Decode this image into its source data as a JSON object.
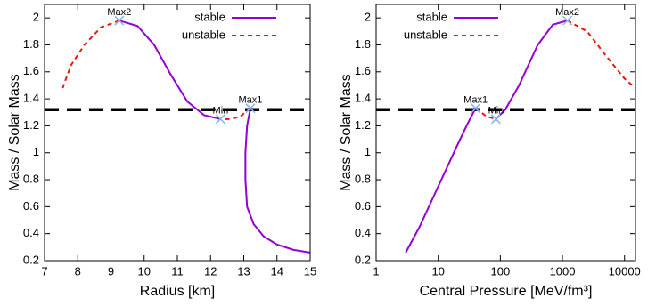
{
  "chart_data": [
    {
      "type": "line",
      "xlabel": "Radius [km]",
      "ylabel": "Mass / Solar Mass",
      "xlim": [
        7,
        15
      ],
      "xticks": [
        7,
        8,
        9,
        10,
        11,
        12,
        13,
        14,
        15
      ],
      "ylim": [
        0.2,
        2.1
      ],
      "yticks": [
        0.2,
        0.4,
        0.6,
        0.8,
        1,
        1.2,
        1.4,
        1.6,
        1.8,
        2
      ],
      "legend": "top-right",
      "hline": {
        "value": 1.32,
        "color": "#000000"
      },
      "series": [
        {
          "name": "stable",
          "color": "#9400d3",
          "dashed": false,
          "x": [
            15,
            14.5,
            14,
            13.6,
            13.3,
            13.1,
            13.05,
            13.05,
            13.1,
            13.2,
            null,
            12.3,
            11.8,
            11.3,
            10.8,
            10.3,
            9.8,
            9.25
          ],
          "values": [
            0.26,
            0.28,
            0.32,
            0.38,
            0.47,
            0.6,
            0.8,
            1.0,
            1.2,
            1.33,
            null,
            1.25,
            1.28,
            1.38,
            1.58,
            1.8,
            1.94,
            1.98
          ]
        },
        {
          "name": "unstable",
          "color": "#e8190c",
          "dashed": true,
          "x": [
            13.2,
            12.9,
            12.6,
            12.3,
            null,
            9.25,
            8.7,
            8.2,
            7.8,
            7.6,
            7.55
          ],
          "values": [
            1.33,
            1.27,
            1.25,
            1.25,
            null,
            1.98,
            1.93,
            1.8,
            1.65,
            1.52,
            1.48
          ]
        }
      ],
      "annotations": [
        {
          "text": "Max2",
          "x": 9.25,
          "y": 1.98
        },
        {
          "text": "Min",
          "x": 12.3,
          "y": 1.25
        },
        {
          "text": "Max1",
          "x": 13.2,
          "y": 1.33
        }
      ],
      "marker_color": "#80b8ec"
    },
    {
      "type": "line",
      "xlabel": "Central Pressure [MeV/fm³]",
      "ylabel": "Mass / Solar Mass",
      "xlog": true,
      "xlim": [
        1,
        15000
      ],
      "xticks": [
        1,
        10,
        100,
        1000,
        10000
      ],
      "ylim": [
        0.2,
        2.1
      ],
      "yticks": [
        0.2,
        0.4,
        0.6,
        0.8,
        1,
        1.2,
        1.4,
        1.6,
        1.8,
        2
      ],
      "legend": "top-left",
      "hline": {
        "value": 1.32,
        "color": "#000000"
      },
      "series": [
        {
          "name": "stable",
          "color": "#9400d3",
          "dashed": false,
          "x": [
            3,
            5,
            10,
            20,
            30,
            40,
            null,
            85,
            120,
            200,
            400,
            700,
            1200
          ],
          "values": [
            0.26,
            0.45,
            0.75,
            1.05,
            1.22,
            1.33,
            null,
            1.25,
            1.32,
            1.5,
            1.8,
            1.95,
            1.98
          ]
        },
        {
          "name": "unstable",
          "color": "#e8190c",
          "dashed": true,
          "x": [
            40,
            60,
            85,
            null,
            1200,
            2500,
            5000,
            10000,
            15000
          ],
          "values": [
            1.33,
            1.27,
            1.25,
            null,
            1.98,
            1.9,
            1.72,
            1.55,
            1.48
          ]
        }
      ],
      "annotations": [
        {
          "text": "Max1",
          "x": 40,
          "y": 1.33
        },
        {
          "text": "Min",
          "x": 85,
          "y": 1.25
        },
        {
          "text": "Max2",
          "x": 1200,
          "y": 1.98
        }
      ],
      "marker_color": "#80b8ec"
    }
  ]
}
